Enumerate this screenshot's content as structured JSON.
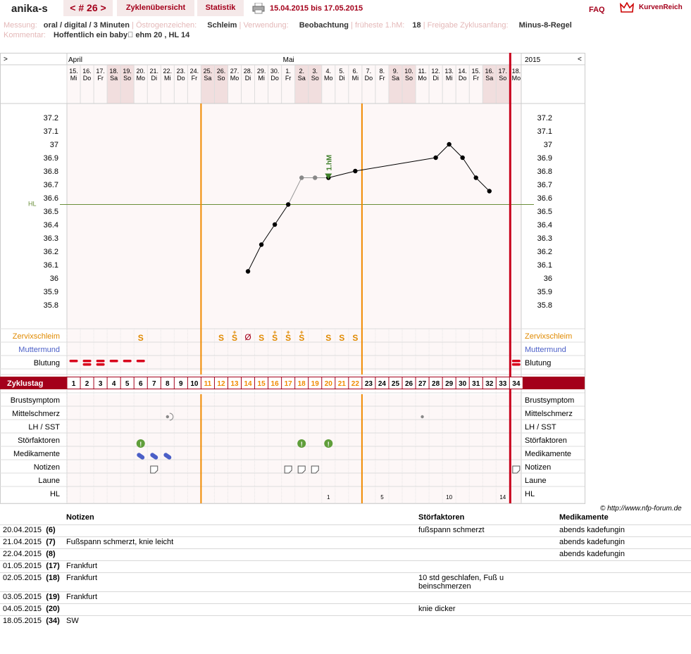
{
  "header": {
    "user": "anika-s",
    "cycle_nav": "< # 26 >",
    "tab_overview": "Zyklenübersicht",
    "tab_stats": "Statistik",
    "date_range": "15.04.2015 bis 17.05.2015",
    "faq": "FAQ",
    "logo": "KurvenReich"
  },
  "meta": {
    "messung_label": "Messung:",
    "messung_value": "oral / digital / 3 Minuten",
    "oestrogen_label": "Östrogenzeichen:",
    "oestrogen_value": "Schleim",
    "verwendung_label": "Verwendung:",
    "verwendung_value": "Beobachtung",
    "hm_label": "früheste 1.hM:",
    "hm_value": "18",
    "freigabe_label": "Freigabe Zyklusanfang:",
    "freigabe_value": "Minus-8-Regel",
    "kommentar_label": "Kommentar:",
    "kommentar_value": "Hoffentlich ein baby\u0000 ehm 20 , HL 14"
  },
  "chart_nav": {
    "left": ">",
    "right": "<",
    "year": "2015"
  },
  "months": [
    {
      "label": "April",
      "start_index": 0
    },
    {
      "label": "Mai",
      "start_index": 16
    }
  ],
  "days": [
    {
      "d": "15.",
      "w": "Mi"
    },
    {
      "d": "16.",
      "w": "Do"
    },
    {
      "d": "17.",
      "w": "Fr"
    },
    {
      "d": "18.",
      "w": "Sa",
      "we": true
    },
    {
      "d": "19.",
      "w": "So",
      "we": true
    },
    {
      "d": "20.",
      "w": "Mo"
    },
    {
      "d": "21.",
      "w": "Di"
    },
    {
      "d": "22.",
      "w": "Mi"
    },
    {
      "d": "23.",
      "w": "Do"
    },
    {
      "d": "24.",
      "w": "Fr"
    },
    {
      "d": "25.",
      "w": "Sa",
      "we": true
    },
    {
      "d": "26.",
      "w": "So",
      "we": true
    },
    {
      "d": "27.",
      "w": "Mo"
    },
    {
      "d": "28.",
      "w": "Di"
    },
    {
      "d": "29.",
      "w": "Mi"
    },
    {
      "d": "30.",
      "w": "Do"
    },
    {
      "d": "1.",
      "w": "Fr"
    },
    {
      "d": "2.",
      "w": "Sa",
      "we": true
    },
    {
      "d": "3.",
      "w": "So",
      "we": true
    },
    {
      "d": "4.",
      "w": "Mo"
    },
    {
      "d": "5.",
      "w": "Di"
    },
    {
      "d": "6.",
      "w": "Mi"
    },
    {
      "d": "7.",
      "w": "Do"
    },
    {
      "d": "8.",
      "w": "Fr"
    },
    {
      "d": "9.",
      "w": "Sa",
      "we": true
    },
    {
      "d": "10.",
      "w": "So",
      "we": true
    },
    {
      "d": "11.",
      "w": "Mo"
    },
    {
      "d": "12.",
      "w": "Di"
    },
    {
      "d": "13.",
      "w": "Mi"
    },
    {
      "d": "14.",
      "w": "Do"
    },
    {
      "d": "15.",
      "w": "Fr"
    },
    {
      "d": "16.",
      "w": "Sa",
      "we": true
    },
    {
      "d": "17.",
      "w": "So",
      "we": true
    },
    {
      "d": "18.",
      "w": "Mo"
    }
  ],
  "chart_data": {
    "type": "line",
    "title": "",
    "ylabel": "",
    "ylim": [
      35.7,
      37.3
    ],
    "yticks": [
      "37.2",
      "37.1",
      "37",
      "36.9",
      "36.8",
      "36.7",
      "36.6",
      "36.5",
      "36.4",
      "36.3",
      "36.2",
      "36.1",
      "36",
      "35.9",
      "35.8"
    ],
    "hl_label": "HL",
    "hl_value": 36.55,
    "hm_label": "1.hM",
    "hm_day": 20,
    "series": [
      {
        "points": [
          {
            "day": 14,
            "temp": 36.05
          },
          {
            "day": 15,
            "temp": 36.25
          },
          {
            "day": 16,
            "temp": 36.4
          },
          {
            "day": 17,
            "temp": 36.55
          },
          {
            "day": 18,
            "temp": 36.75,
            "excluded": true
          },
          {
            "day": 19,
            "temp": 36.75,
            "excluded": true
          },
          {
            "day": 20,
            "temp": 36.75
          },
          {
            "day": 22,
            "temp": 36.8
          },
          {
            "day": 28,
            "temp": 36.9
          },
          {
            "day": 29,
            "temp": 37.0
          },
          {
            "day": 30,
            "temp": 36.9
          },
          {
            "day": 31,
            "temp": 36.75
          },
          {
            "day": 32,
            "temp": 36.65
          }
        ]
      }
    ],
    "orange_lines_after_day": [
      10,
      22
    ],
    "red_line_after_day": 33
  },
  "rows_top": {
    "zervix": "Zervixschleim",
    "muttermund": "Muttermund",
    "blutung": "Blutung"
  },
  "zervix_marks": [
    {
      "day": 6,
      "sym": "S"
    },
    {
      "day": 12,
      "sym": "S"
    },
    {
      "day": 13,
      "sym": "S+"
    },
    {
      "day": 14,
      "sym": "Ø"
    },
    {
      "day": 15,
      "sym": "S"
    },
    {
      "day": 16,
      "sym": "S+"
    },
    {
      "day": 17,
      "sym": "S+"
    },
    {
      "day": 18,
      "sym": "S+"
    },
    {
      "day": 20,
      "sym": "S"
    },
    {
      "day": 21,
      "sym": "S"
    },
    {
      "day": 22,
      "sym": "S"
    }
  ],
  "blutung_days": [
    1,
    2,
    3,
    4,
    5,
    6,
    34
  ],
  "zyklustag": {
    "label": "Zyklustag",
    "numbers": [
      "1",
      "2",
      "3",
      "4",
      "5",
      "6",
      "7",
      "8",
      "9",
      "10",
      "11",
      "12",
      "13",
      "14",
      "15",
      "16",
      "17",
      "18",
      "19",
      "20",
      "21",
      "22",
      "23",
      "24",
      "25",
      "26",
      "27",
      "28",
      "29",
      "30",
      "31",
      "32",
      "33",
      "34"
    ],
    "orange_from": 11,
    "orange_to": 22
  },
  "rows_bottom": {
    "brust": "Brustsymptom",
    "mittel": "Mittelschmerz",
    "lh": "LH / SST",
    "stoer": "Störfaktoren",
    "medi": "Medikamente",
    "notizen": "Notizen",
    "laune": "Laune",
    "hl": "HL"
  },
  "mittelschmerz_days": [
    8,
    27
  ],
  "stoer_days": [
    6,
    18,
    20
  ],
  "medi_days": [
    6,
    7,
    8
  ],
  "notiz_days": [
    7,
    17,
    18,
    19,
    34
  ],
  "hl_numbers": [
    {
      "day": 20,
      "n": "1"
    },
    {
      "day": 24,
      "n": "5"
    },
    {
      "day": 29,
      "n": "10"
    },
    {
      "day": 33,
      "n": "14"
    }
  ],
  "copyright": "© http://www.nfp-forum.de",
  "notes_table": {
    "headers": {
      "notizen": "Notizen",
      "stoer": "Störfaktoren",
      "medi": "Medikamente"
    },
    "rows": [
      {
        "date": "20.04.2015",
        "day": "(6)",
        "note": "",
        "stoer": "fußspann schmerzt",
        "medi": "abends kadefungin"
      },
      {
        "date": "21.04.2015",
        "day": "(7)",
        "note": "Fußspann schmerzt, knie leicht",
        "stoer": "",
        "medi": "abends kadefungin"
      },
      {
        "date": "22.04.2015",
        "day": "(8)",
        "note": "",
        "stoer": "",
        "medi": "abends kadefungin"
      },
      {
        "date": "01.05.2015",
        "day": "(17)",
        "note": "Frankfurt",
        "stoer": "",
        "medi": ""
      },
      {
        "date": "02.05.2015",
        "day": "(18)",
        "note": "Frankfurt",
        "stoer": "10 std geschlafen, Fuß u beinschmerzen",
        "medi": ""
      },
      {
        "date": "03.05.2015",
        "day": "(19)",
        "note": "Frankfurt",
        "stoer": "",
        "medi": ""
      },
      {
        "date": "04.05.2015",
        "day": "(20)",
        "note": "",
        "stoer": "knie dicker",
        "medi": ""
      },
      {
        "date": "18.05.2015",
        "day": "(34)",
        "note": "SW",
        "stoer": "",
        "medi": ""
      }
    ]
  }
}
